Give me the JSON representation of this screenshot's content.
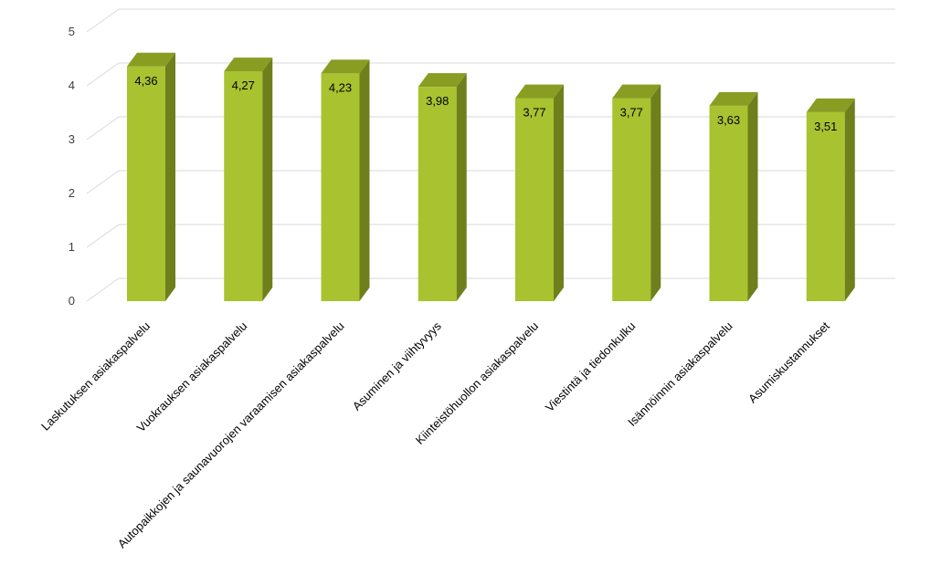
{
  "chart_data": {
    "type": "bar",
    "style": "3d-column",
    "title": "",
    "xlabel": "",
    "ylabel": "",
    "categories": [
      "Laskutuksen asiakaspalvelu",
      "Vuokrauksen asiakaspalvelu",
      "Autopaikkojen ja saunavuorojen varaamisen asiakaspalvelu",
      "Asuminen ja viihtyvyys",
      "Kiinteistöhuollon asiakaspalvelu",
      "Viestintä ja tiedonkulku",
      "Isännöinnin asiakaspalvelu",
      "Asumiskustannukset"
    ],
    "values": [
      4.36,
      4.27,
      4.23,
      3.98,
      3.77,
      3.77,
      3.63,
      3.51
    ],
    "data_labels": [
      "4,36",
      "4,27",
      "4,23",
      "3,98",
      "3,77",
      "3,77",
      "3,63",
      "3,51"
    ],
    "ylim": [
      0,
      5
    ],
    "yticks": [
      0,
      1,
      2,
      3,
      4,
      5
    ],
    "grid": true,
    "legend": "none",
    "colors": {
      "front": "#a9c22f",
      "side": "#6f7f1c",
      "top": "#889d22",
      "grid": "#d9d9d9",
      "tick_text": "#404040"
    }
  }
}
